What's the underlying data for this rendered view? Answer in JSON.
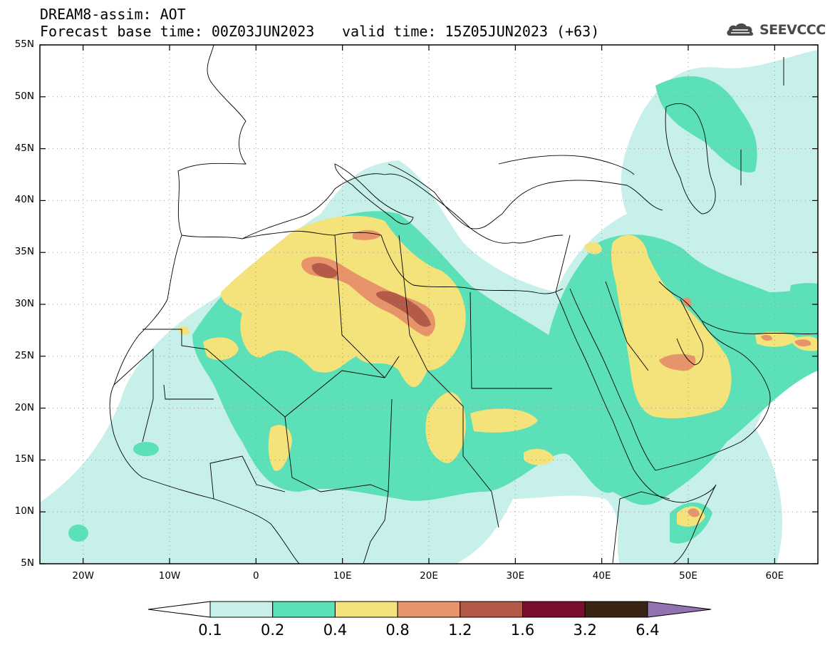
{
  "header": {
    "title": "DREAM8-assim: AOT",
    "base_time_line": "Forecast base time: 00Z03JUN2023",
    "valid_time_line": "valid time: 15Z05JUN2023 (+63)"
  },
  "logo": {
    "text": "SEEVCCC",
    "icon": "cloud-icon"
  },
  "map": {
    "projection": "lat-lon",
    "lon_range": [
      -25,
      65
    ],
    "lat_range": [
      5,
      55
    ],
    "gridlines": "dotted",
    "lat_labels": [
      "55N",
      "50N",
      "45N",
      "40N",
      "35N",
      "30N",
      "25N",
      "20N",
      "15N",
      "10N",
      "5N"
    ],
    "lon_labels": [
      "20W",
      "10W",
      "0",
      "10E",
      "20E",
      "30E",
      "40E",
      "50E",
      "60E"
    ]
  },
  "colorbar": {
    "labels": [
      "0.1",
      "0.2",
      "0.4",
      "0.8",
      "1.2",
      "1.6",
      "3.2",
      "6.4"
    ],
    "colors": [
      "#c8f0ea",
      "#5be0b8",
      "#f4e27a",
      "#e8946a",
      "#b45a48",
      "#7a0e2e",
      "#3a2414",
      "#9272b0"
    ]
  }
}
